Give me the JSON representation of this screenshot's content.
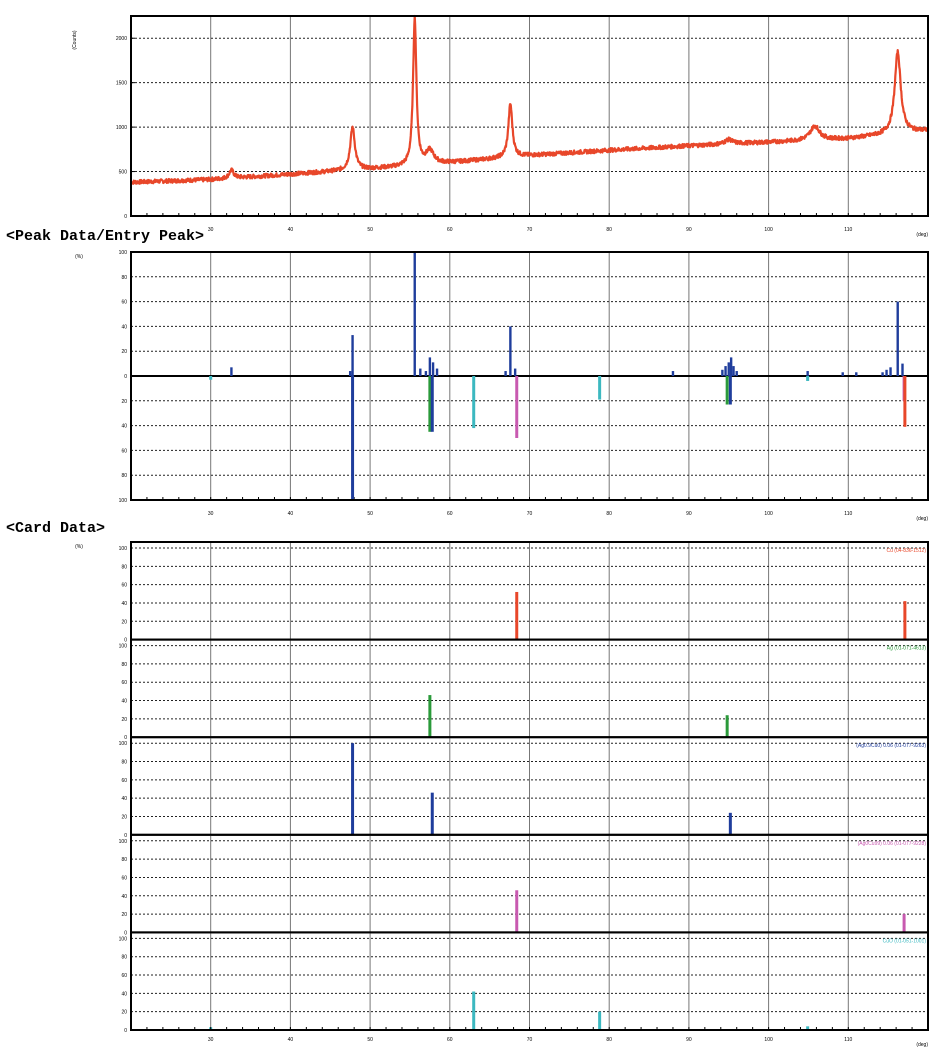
{
  "chart_data": [
    {
      "panel": "pattern",
      "type": "line",
      "ylabel": "(Counts)",
      "xunit": "(deg)",
      "xlim": [
        20,
        120
      ],
      "ylim": [
        0,
        2250
      ],
      "yticks": [
        0,
        500,
        1000,
        1500,
        2000
      ],
      "xticks": [
        20,
        30,
        40,
        50,
        60,
        70,
        80,
        90,
        100,
        110,
        120
      ],
      "color": "#e8472a",
      "baseline": [
        [
          20,
          380
        ],
        [
          30,
          410
        ],
        [
          40,
          470
        ],
        [
          50,
          530
        ],
        [
          55,
          560
        ],
        [
          60,
          600
        ],
        [
          70,
          680
        ],
        [
          80,
          740
        ],
        [
          90,
          790
        ],
        [
          100,
          830
        ],
        [
          110,
          870
        ],
        [
          120,
          960
        ]
      ],
      "peaks": [
        {
          "x": 32.6,
          "h": 90,
          "w": 0.35
        },
        {
          "x": 47.8,
          "h": 480,
          "w": 0.35
        },
        {
          "x": 55.6,
          "h": 1660,
          "w": 0.25
        },
        {
          "x": 57.5,
          "h": 150,
          "w": 0.6
        },
        {
          "x": 67.6,
          "h": 600,
          "w": 0.3
        },
        {
          "x": 95.0,
          "h": 50,
          "w": 0.6
        },
        {
          "x": 105.8,
          "h": 160,
          "w": 0.7
        },
        {
          "x": 116.2,
          "h": 920,
          "w": 0.45
        }
      ]
    },
    {
      "panel": "peak-data",
      "title": "<Peak Data/Entry Peak>",
      "type": "bar",
      "ylabel": "(%)",
      "xunit": "(deg)",
      "xlim": [
        20,
        120
      ],
      "ylim": [
        -100,
        100
      ],
      "yticks": [
        -100,
        -80,
        -60,
        -40,
        -20,
        0,
        20,
        40,
        60,
        80,
        100
      ],
      "xticks": [
        20,
        30,
        40,
        50,
        60,
        70,
        80,
        90,
        100,
        110,
        120
      ],
      "peak_color": "#1f3d9c",
      "peaks": [
        {
          "x": 32.6,
          "h": 7
        },
        {
          "x": 47.5,
          "h": 4
        },
        {
          "x": 47.8,
          "h": 33
        },
        {
          "x": 55.6,
          "h": 100
        },
        {
          "x": 56.3,
          "h": 6
        },
        {
          "x": 57.0,
          "h": 4
        },
        {
          "x": 57.5,
          "h": 15
        },
        {
          "x": 57.9,
          "h": 11
        },
        {
          "x": 58.4,
          "h": 6
        },
        {
          "x": 67.0,
          "h": 4
        },
        {
          "x": 67.6,
          "h": 40
        },
        {
          "x": 68.2,
          "h": 6
        },
        {
          "x": 88.0,
          "h": 4
        },
        {
          "x": 94.2,
          "h": 5
        },
        {
          "x": 94.6,
          "h": 8
        },
        {
          "x": 95.0,
          "h": 11
        },
        {
          "x": 95.3,
          "h": 15
        },
        {
          "x": 95.6,
          "h": 8
        },
        {
          "x": 96.0,
          "h": 4
        },
        {
          "x": 104.9,
          "h": 4
        },
        {
          "x": 109.3,
          "h": 3
        },
        {
          "x": 111.0,
          "h": 3
        },
        {
          "x": 114.3,
          "h": 3
        },
        {
          "x": 114.8,
          "h": 5
        },
        {
          "x": 115.3,
          "h": 7
        },
        {
          "x": 116.2,
          "h": 60
        },
        {
          "x": 116.8,
          "h": 10
        }
      ],
      "entries": [
        {
          "x": 30.0,
          "h": 3,
          "color": "#3cb8c0"
        },
        {
          "x": 47.8,
          "h": 100,
          "color": "#1f3d9c"
        },
        {
          "x": 57.5,
          "h": 45,
          "color": "#2a9a3a"
        },
        {
          "x": 57.8,
          "h": 45,
          "color": "#1f3d9c"
        },
        {
          "x": 63.0,
          "h": 42,
          "color": "#3cb8c0"
        },
        {
          "x": 68.4,
          "h": 50,
          "color": "#c85ab0"
        },
        {
          "x": 78.8,
          "h": 19,
          "color": "#3cb8c0"
        },
        {
          "x": 94.8,
          "h": 23,
          "color": "#2a9a3a"
        },
        {
          "x": 95.2,
          "h": 23,
          "color": "#1f3d9c"
        },
        {
          "x": 104.9,
          "h": 4,
          "color": "#3cb8c0"
        },
        {
          "x": 117.0,
          "h": 20,
          "color": "#c85ab0"
        },
        {
          "x": 117.1,
          "h": 41,
          "color": "#e8472a"
        }
      ]
    },
    {
      "panel": "card-data",
      "title": "<Card Data>",
      "type": "bar",
      "ylabel": "(%)",
      "xunit": "(deg)",
      "xlim": [
        20,
        120
      ],
      "ylim": [
        0,
        100
      ],
      "yticks": [
        0,
        20,
        40,
        60,
        80,
        100
      ],
      "xticks": [
        20,
        30,
        40,
        50,
        60,
        70,
        80,
        90,
        100,
        110,
        120
      ],
      "cards": [
        {
          "label": "Cu (04-836-1512)",
          "color": "#e8472a",
          "bars": [
            {
              "x": 68.4,
              "h": 52
            },
            {
              "x": 117.1,
              "h": 42
            }
          ]
        },
        {
          "label": "Ag (01-071-4613)",
          "color": "#2a9a3a",
          "bars": [
            {
              "x": 57.5,
              "h": 46
            },
            {
              "x": 94.8,
              "h": 24
            }
          ]
        },
        {
          "label": "(Ag0.9Cu0) 0.06 (01-077-9263)",
          "color": "#1f3d9c",
          "bars": [
            {
              "x": 47.8,
              "h": 100
            },
            {
              "x": 57.8,
              "h": 46
            },
            {
              "x": 95.2,
              "h": 24
            }
          ]
        },
        {
          "label": "(Ag0Cu99) 0.06 (01-077-9228)",
          "color": "#c85ab0",
          "bars": [
            {
              "x": 68.4,
              "h": 46
            },
            {
              "x": 117.0,
              "h": 20
            }
          ]
        },
        {
          "label": "CuO (01-051-1001)",
          "color": "#3cb8c0",
          "bars": [
            {
              "x": 30.0,
              "h": 3
            },
            {
              "x": 63.0,
              "h": 42
            },
            {
              "x": 78.8,
              "h": 20
            },
            {
              "x": 104.9,
              "h": 4
            }
          ]
        }
      ]
    }
  ]
}
